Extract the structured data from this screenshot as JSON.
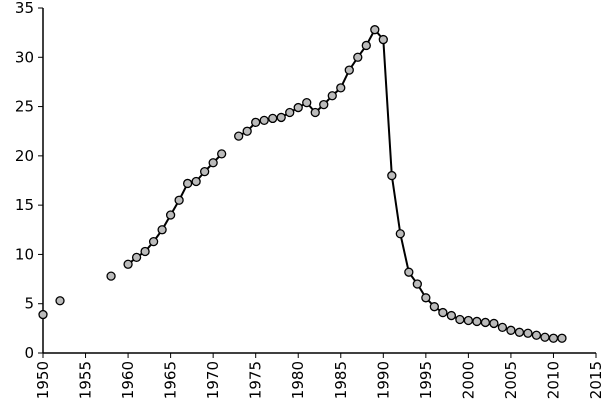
{
  "chart_data": {
    "type": "line",
    "x": [
      1950,
      1951,
      1952,
      1953,
      1954,
      1955,
      1956,
      1957,
      1958,
      1959,
      1960,
      1961,
      1962,
      1963,
      1964,
      1965,
      1966,
      1967,
      1968,
      1969,
      1970,
      1971,
      1972,
      1973,
      1974,
      1975,
      1976,
      1977,
      1978,
      1979,
      1980,
      1981,
      1982,
      1983,
      1984,
      1985,
      1986,
      1987,
      1988,
      1989,
      1990,
      1991,
      1992,
      1993,
      1994,
      1995,
      1996,
      1997,
      1998,
      1999,
      2000,
      2001,
      2002,
      2003,
      2004,
      2005,
      2006,
      2007,
      2008,
      2009,
      2010,
      2011
    ],
    "series": [
      {
        "color": "#000000",
        "values": [
          3.9,
          null,
          5.3,
          null,
          null,
          null,
          null,
          null,
          7.8,
          null,
          9.0,
          9.7,
          10.3,
          11.3,
          12.5,
          14.0,
          15.5,
          17.2,
          17.4,
          18.4,
          19.3,
          20.2,
          null,
          22.0,
          22.5,
          23.4,
          23.6,
          23.8,
          23.9,
          24.4,
          24.9,
          25.4,
          24.4,
          25.2,
          26.1,
          26.9,
          28.7,
          30.0,
          31.2,
          32.8,
          31.8,
          18.0,
          12.1,
          8.2,
          7.0,
          5.6,
          4.7,
          4.1,
          3.8,
          3.4,
          3.3,
          3.2,
          3.1,
          3.0,
          2.6,
          2.3,
          2.1,
          2.0,
          1.8,
          1.6,
          1.5,
          1.5
        ]
      }
    ],
    "xlim": [
      1950,
      2015
    ],
    "xticks": [
      1950,
      1955,
      1960,
      1965,
      1970,
      1975,
      1980,
      1985,
      1990,
      1995,
      2000,
      2005,
      2010,
      2015
    ],
    "ylim": [
      0,
      35
    ],
    "yticks": [
      0,
      5,
      10,
      15,
      20,
      25,
      30,
      35
    ],
    "grid": false
  }
}
